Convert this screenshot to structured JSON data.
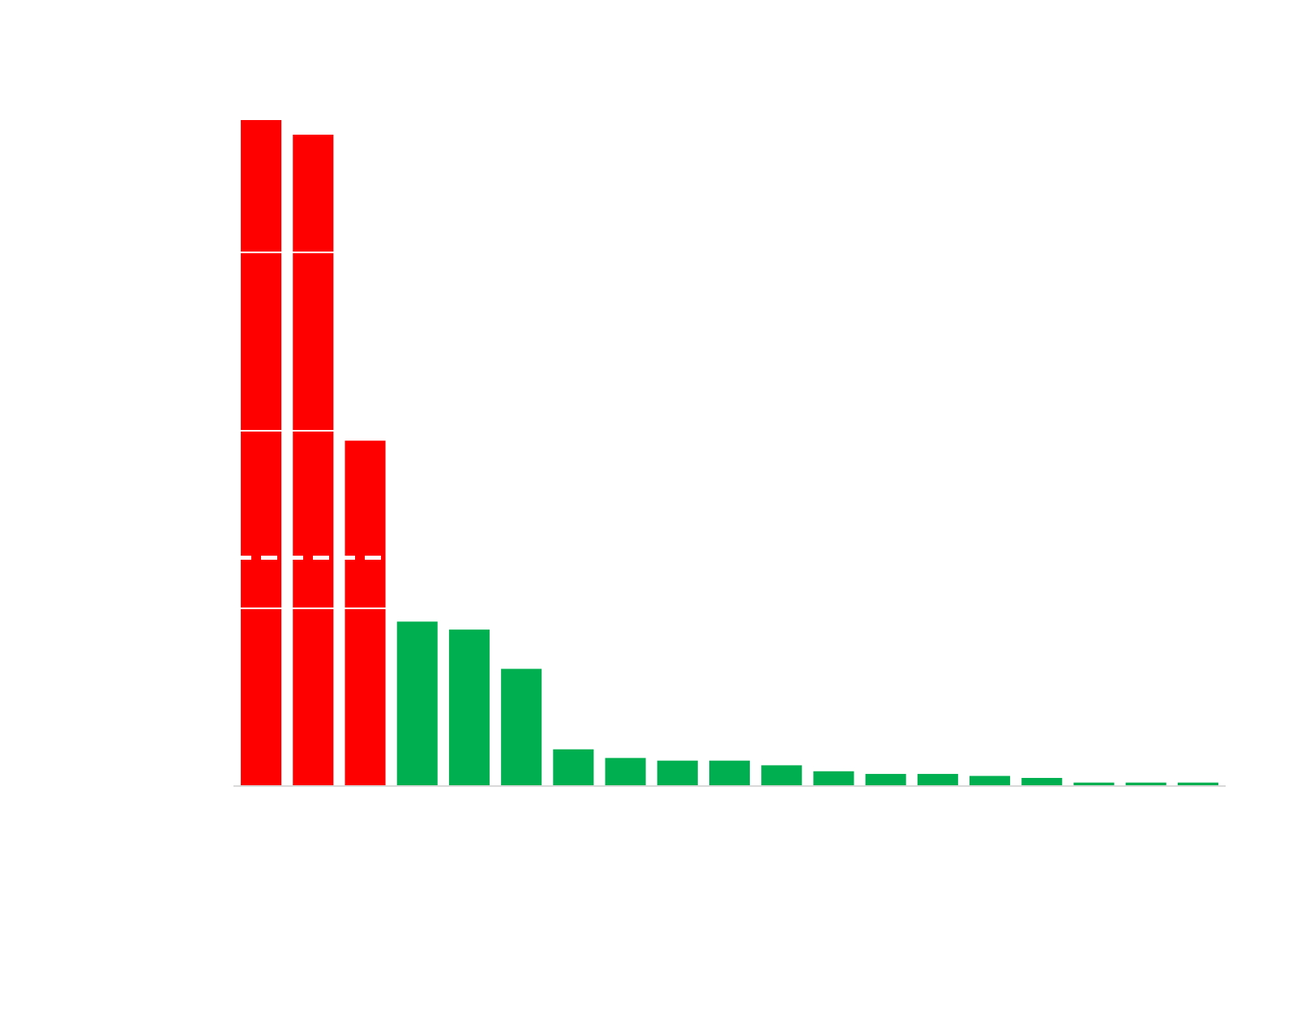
{
  "chart_data": {
    "type": "bar",
    "values": [
      100,
      97.8,
      51.8,
      24.6,
      23.4,
      17.5,
      5.4,
      4.1,
      3.7,
      3.7,
      3.0,
      2.1,
      1.7,
      1.7,
      1.4,
      1.1,
      0.4,
      0.4,
      0.4
    ],
    "ylim": [
      0,
      100
    ],
    "threshold": 34.2,
    "highlight_count": 3,
    "colors": {
      "highlight": "#ff0000",
      "normal": "#00b050",
      "gridline": "#ffffff",
      "threshold_line": "#ffffff",
      "axis": "#d9d9d9",
      "background": "#ffffff"
    },
    "gridlines": [
      26.6,
      53.3,
      80.1
    ],
    "grid": true,
    "legend": "none"
  }
}
